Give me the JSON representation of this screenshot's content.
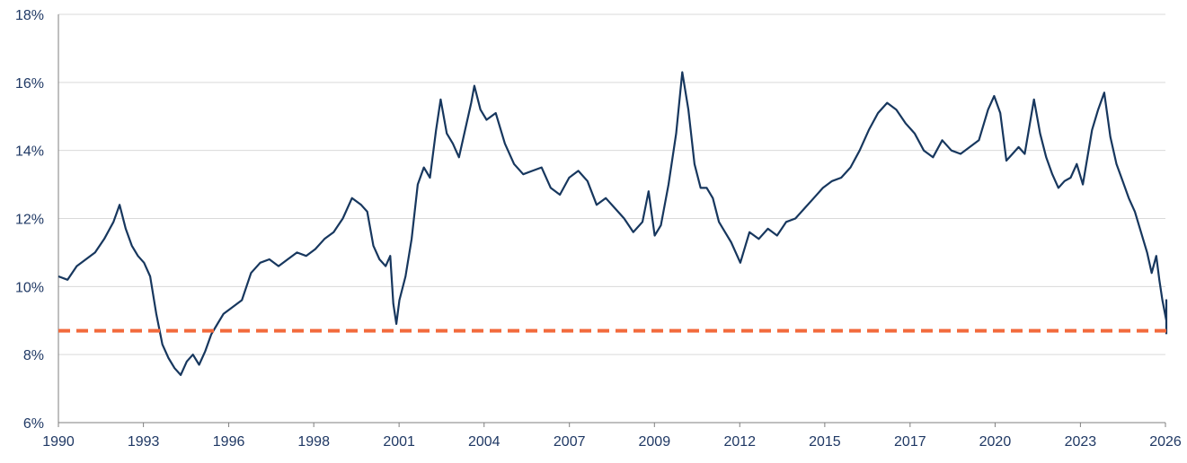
{
  "chart_data": {
    "type": "line",
    "title": "",
    "xlabel": "",
    "ylabel": "",
    "ylim": [
      6,
      18
    ],
    "xlim": [
      1990.0,
      2026.2
    ],
    "grid": "horizontal",
    "colors": {
      "series": "#17375e",
      "reference": "#f26a3c",
      "grid": "#d9d9d9",
      "axis": "#7f7f7f",
      "text": "#1f3864"
    },
    "y_ticks": [
      "6%",
      "8%",
      "10%",
      "12%",
      "14%",
      "16%",
      "18%"
    ],
    "y_tick_values": [
      6,
      8,
      10,
      12,
      14,
      16,
      18
    ],
    "x_ticks": [
      "1990",
      "1993",
      "1996",
      "1998",
      "2001",
      "2004",
      "2007",
      "2009",
      "2012",
      "2015",
      "2017",
      "2020",
      "2023",
      "2026"
    ],
    "x_tick_values": [
      1990.0,
      1992.78,
      1995.57,
      1998.35,
      2001.14,
      2003.92,
      2006.71,
      2009.49,
      2012.28,
      2015.06,
      2017.85,
      2020.63,
      2023.42,
      2026.2
    ],
    "series": [
      {
        "values": [
          [
            1990.0,
            10.3
          ],
          [
            1990.3,
            10.2
          ],
          [
            1990.6,
            10.6
          ],
          [
            1990.9,
            10.8
          ],
          [
            1991.2,
            11.0
          ],
          [
            1991.5,
            11.4
          ],
          [
            1991.8,
            11.9
          ],
          [
            1992.0,
            12.4
          ],
          [
            1992.2,
            11.7
          ],
          [
            1992.4,
            11.2
          ],
          [
            1992.6,
            10.9
          ],
          [
            1992.8,
            10.7
          ],
          [
            1993.0,
            10.3
          ],
          [
            1993.2,
            9.2
          ],
          [
            1993.4,
            8.3
          ],
          [
            1993.6,
            7.9
          ],
          [
            1993.8,
            7.6
          ],
          [
            1994.0,
            7.4
          ],
          [
            1994.2,
            7.8
          ],
          [
            1994.4,
            8.0
          ],
          [
            1994.6,
            7.7
          ],
          [
            1994.8,
            8.1
          ],
          [
            1995.0,
            8.6
          ],
          [
            1995.2,
            8.9
          ],
          [
            1995.4,
            9.2
          ],
          [
            1995.7,
            9.4
          ],
          [
            1996.0,
            9.6
          ],
          [
            1996.3,
            10.4
          ],
          [
            1996.6,
            10.7
          ],
          [
            1996.9,
            10.8
          ],
          [
            1997.2,
            10.6
          ],
          [
            1997.5,
            10.8
          ],
          [
            1997.8,
            11.0
          ],
          [
            1998.1,
            10.9
          ],
          [
            1998.4,
            11.1
          ],
          [
            1998.7,
            11.4
          ],
          [
            1999.0,
            11.6
          ],
          [
            1999.3,
            12.0
          ],
          [
            1999.6,
            12.6
          ],
          [
            1999.9,
            12.4
          ],
          [
            2000.1,
            12.2
          ],
          [
            2000.3,
            11.2
          ],
          [
            2000.5,
            10.8
          ],
          [
            2000.7,
            10.6
          ],
          [
            2000.85,
            10.9
          ],
          [
            2000.95,
            9.5
          ],
          [
            2001.05,
            8.9
          ],
          [
            2001.15,
            9.6
          ],
          [
            2001.35,
            10.3
          ],
          [
            2001.55,
            11.4
          ],
          [
            2001.75,
            13.0
          ],
          [
            2001.95,
            13.5
          ],
          [
            2002.15,
            13.2
          ],
          [
            2002.35,
            14.6
          ],
          [
            2002.5,
            15.5
          ],
          [
            2002.7,
            14.5
          ],
          [
            2002.9,
            14.2
          ],
          [
            2003.1,
            13.8
          ],
          [
            2003.3,
            14.6
          ],
          [
            2003.5,
            15.4
          ],
          [
            2003.6,
            15.9
          ],
          [
            2003.8,
            15.2
          ],
          [
            2004.0,
            14.9
          ],
          [
            2004.3,
            15.1
          ],
          [
            2004.6,
            14.2
          ],
          [
            2004.9,
            13.6
          ],
          [
            2005.2,
            13.3
          ],
          [
            2005.5,
            13.4
          ],
          [
            2005.8,
            13.5
          ],
          [
            2006.1,
            12.9
          ],
          [
            2006.4,
            12.7
          ],
          [
            2006.7,
            13.2
          ],
          [
            2007.0,
            13.4
          ],
          [
            2007.3,
            13.1
          ],
          [
            2007.6,
            12.4
          ],
          [
            2007.9,
            12.6
          ],
          [
            2008.2,
            12.3
          ],
          [
            2008.5,
            12.0
          ],
          [
            2008.8,
            11.6
          ],
          [
            2009.1,
            11.9
          ],
          [
            2009.3,
            12.8
          ],
          [
            2009.5,
            11.5
          ],
          [
            2009.7,
            11.8
          ],
          [
            2009.95,
            13.0
          ],
          [
            2010.2,
            14.5
          ],
          [
            2010.4,
            16.3
          ],
          [
            2010.6,
            15.2
          ],
          [
            2010.8,
            13.6
          ],
          [
            2011.0,
            12.9
          ],
          [
            2011.2,
            12.9
          ],
          [
            2011.4,
            12.6
          ],
          [
            2011.6,
            11.9
          ],
          [
            2011.8,
            11.6
          ],
          [
            2012.0,
            11.3
          ],
          [
            2012.3,
            10.7
          ],
          [
            2012.6,
            11.6
          ],
          [
            2012.9,
            11.4
          ],
          [
            2013.2,
            11.7
          ],
          [
            2013.5,
            11.5
          ],
          [
            2013.8,
            11.9
          ],
          [
            2014.1,
            12.0
          ],
          [
            2014.4,
            12.3
          ],
          [
            2014.7,
            12.6
          ],
          [
            2015.0,
            12.9
          ],
          [
            2015.3,
            13.1
          ],
          [
            2015.6,
            13.2
          ],
          [
            2015.9,
            13.5
          ],
          [
            2016.2,
            14.0
          ],
          [
            2016.5,
            14.6
          ],
          [
            2016.8,
            15.1
          ],
          [
            2017.1,
            15.4
          ],
          [
            2017.4,
            15.2
          ],
          [
            2017.7,
            14.8
          ],
          [
            2018.0,
            14.5
          ],
          [
            2018.3,
            14.0
          ],
          [
            2018.6,
            13.8
          ],
          [
            2018.9,
            14.3
          ],
          [
            2019.2,
            14.0
          ],
          [
            2019.5,
            13.9
          ],
          [
            2019.8,
            14.1
          ],
          [
            2020.1,
            14.3
          ],
          [
            2020.4,
            15.2
          ],
          [
            2020.6,
            15.6
          ],
          [
            2020.8,
            15.1
          ],
          [
            2021.0,
            13.7
          ],
          [
            2021.2,
            13.9
          ],
          [
            2021.4,
            14.1
          ],
          [
            2021.6,
            13.9
          ],
          [
            2021.9,
            15.5
          ],
          [
            2022.1,
            14.5
          ],
          [
            2022.3,
            13.8
          ],
          [
            2022.5,
            13.3
          ],
          [
            2022.7,
            12.9
          ],
          [
            2022.9,
            13.1
          ],
          [
            2023.1,
            13.2
          ],
          [
            2023.3,
            13.6
          ],
          [
            2023.5,
            13.0
          ],
          [
            2023.8,
            14.6
          ],
          [
            2024.0,
            15.2
          ],
          [
            2024.2,
            15.7
          ],
          [
            2024.4,
            14.4
          ],
          [
            2024.6,
            13.6
          ],
          [
            2024.8,
            13.1
          ],
          [
            2025.0,
            12.6
          ],
          [
            2025.2,
            12.2
          ],
          [
            2025.4,
            11.6
          ],
          [
            2025.6,
            11.0
          ],
          [
            2025.75,
            10.4
          ],
          [
            2025.9,
            10.9
          ],
          [
            2026.0,
            10.2
          ],
          [
            2026.1,
            9.6
          ],
          [
            2026.25,
            9.0
          ],
          [
            2026.4,
            9.1
          ],
          [
            2026.55,
            9.6
          ],
          [
            2026.7,
            9.5
          ],
          [
            2026.85,
            9.3
          ],
          [
            2027.0,
            8.6
          ]
        ]
      },
      {
        "style": "dashed",
        "values": [
          [
            1990.0,
            8.7
          ],
          [
            2027.0,
            8.7
          ]
        ]
      }
    ]
  }
}
